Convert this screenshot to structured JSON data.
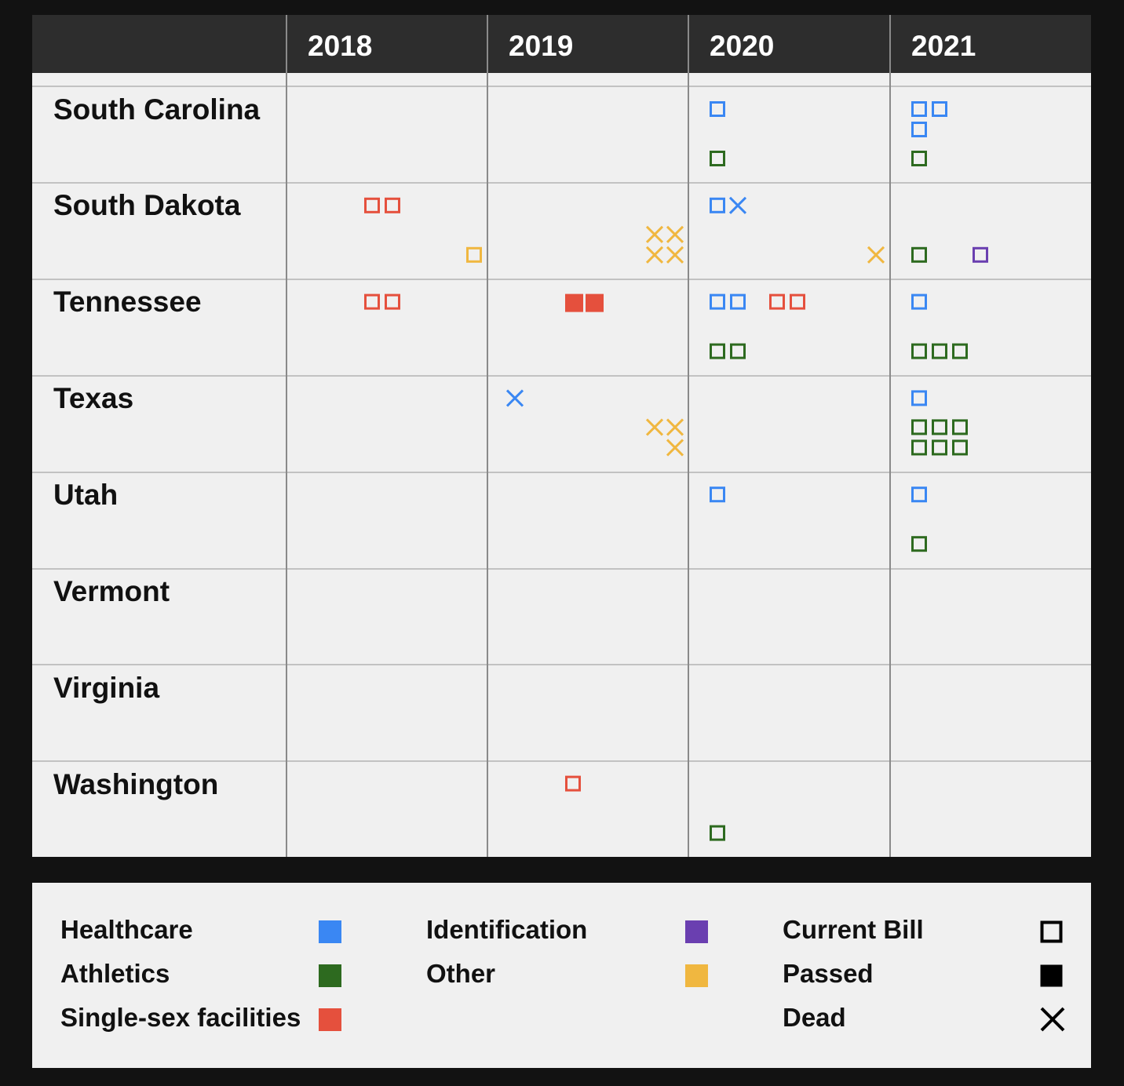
{
  "chart_data": {
    "type": "table",
    "years": [
      "2018",
      "2019",
      "2020",
      "2021"
    ],
    "states": [
      "South Carolina",
      "South Dakota",
      "Tennessee",
      "Texas",
      "Utah",
      "Vermont",
      "Virginia",
      "Washington"
    ],
    "categories": [
      {
        "key": "healthcare",
        "label": "Healthcare",
        "color": "#3a87f3"
      },
      {
        "key": "athletics",
        "label": "Athletics",
        "color": "#2d6a1f"
      },
      {
        "key": "facilities",
        "label": "Single-sex facilities",
        "color": "#e5503d"
      },
      {
        "key": "identification",
        "label": "Identification",
        "color": "#6a3fb0"
      },
      {
        "key": "other",
        "label": "Other",
        "color": "#f0b740"
      }
    ],
    "statuses": [
      {
        "key": "current",
        "label": "Current Bill",
        "symbol": "open-square"
      },
      {
        "key": "passed",
        "label": "Passed",
        "symbol": "filled-square"
      },
      {
        "key": "dead",
        "label": "Dead",
        "symbol": "x"
      }
    ],
    "bills": [
      {
        "state": "South Carolina",
        "year": "2020",
        "category": "healthcare",
        "status": "current",
        "count": 1
      },
      {
        "state": "South Carolina",
        "year": "2020",
        "category": "athletics",
        "status": "current",
        "count": 1
      },
      {
        "state": "South Carolina",
        "year": "2021",
        "category": "healthcare",
        "status": "current",
        "count": 3
      },
      {
        "state": "South Carolina",
        "year": "2021",
        "category": "athletics",
        "status": "current",
        "count": 1
      },
      {
        "state": "South Dakota",
        "year": "2018",
        "category": "facilities",
        "status": "current",
        "count": 2
      },
      {
        "state": "South Dakota",
        "year": "2018",
        "category": "other",
        "status": "current",
        "count": 1
      },
      {
        "state": "South Dakota",
        "year": "2019",
        "category": "other",
        "status": "dead",
        "count": 4
      },
      {
        "state": "South Dakota",
        "year": "2020",
        "category": "healthcare",
        "status": "current",
        "count": 1
      },
      {
        "state": "South Dakota",
        "year": "2020",
        "category": "healthcare",
        "status": "dead",
        "count": 1
      },
      {
        "state": "South Dakota",
        "year": "2020",
        "category": "other",
        "status": "dead",
        "count": 1
      },
      {
        "state": "South Dakota",
        "year": "2021",
        "category": "athletics",
        "status": "current",
        "count": 1
      },
      {
        "state": "South Dakota",
        "year": "2021",
        "category": "identification",
        "status": "current",
        "count": 1
      },
      {
        "state": "Tennessee",
        "year": "2018",
        "category": "facilities",
        "status": "current",
        "count": 2
      },
      {
        "state": "Tennessee",
        "year": "2019",
        "category": "facilities",
        "status": "passed",
        "count": 2
      },
      {
        "state": "Tennessee",
        "year": "2020",
        "category": "healthcare",
        "status": "current",
        "count": 2
      },
      {
        "state": "Tennessee",
        "year": "2020",
        "category": "facilities",
        "status": "current",
        "count": 2
      },
      {
        "state": "Tennessee",
        "year": "2020",
        "category": "athletics",
        "status": "current",
        "count": 2
      },
      {
        "state": "Tennessee",
        "year": "2021",
        "category": "healthcare",
        "status": "current",
        "count": 1
      },
      {
        "state": "Tennessee",
        "year": "2021",
        "category": "athletics",
        "status": "current",
        "count": 3
      },
      {
        "state": "Texas",
        "year": "2019",
        "category": "healthcare",
        "status": "dead",
        "count": 1
      },
      {
        "state": "Texas",
        "year": "2019",
        "category": "other",
        "status": "dead",
        "count": 3
      },
      {
        "state": "Texas",
        "year": "2021",
        "category": "healthcare",
        "status": "current",
        "count": 1
      },
      {
        "state": "Texas",
        "year": "2021",
        "category": "athletics",
        "status": "current",
        "count": 6
      },
      {
        "state": "Utah",
        "year": "2020",
        "category": "healthcare",
        "status": "current",
        "count": 1
      },
      {
        "state": "Utah",
        "year": "2021",
        "category": "healthcare",
        "status": "current",
        "count": 1
      },
      {
        "state": "Utah",
        "year": "2021",
        "category": "athletics",
        "status": "current",
        "count": 1
      },
      {
        "state": "Washington",
        "year": "2019",
        "category": "facilities",
        "status": "current",
        "count": 1
      },
      {
        "state": "Washington",
        "year": "2020",
        "category": "athletics",
        "status": "current",
        "count": 1
      }
    ]
  }
}
